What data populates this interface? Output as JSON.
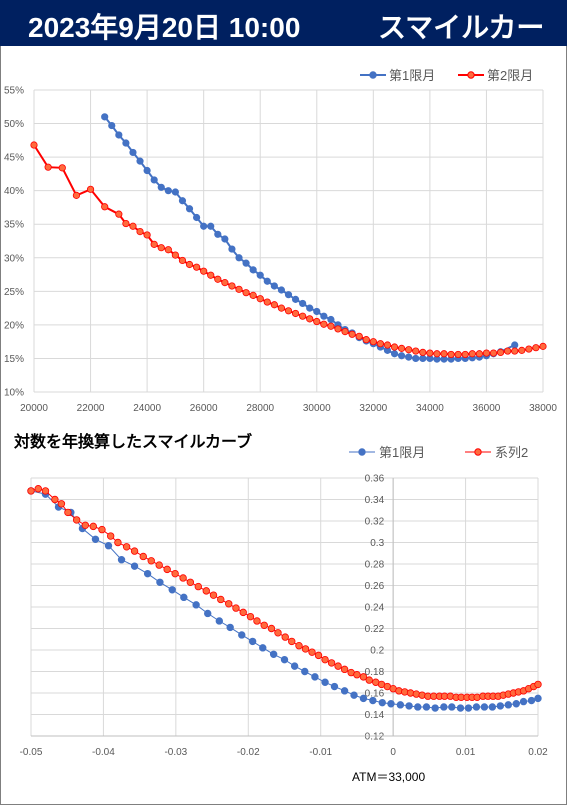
{
  "header": {
    "date": "2023年9月20日 10:00",
    "name": "スマイルカーブ"
  },
  "colors": {
    "header_bg": "#002060",
    "series1": "#4472c4",
    "series2": "#ff0000",
    "series2_fill": "#ff6a3d",
    "grid": "#d9d9d9"
  },
  "chart_data": [
    {
      "type": "line",
      "title": "",
      "xlabel": "",
      "ylabel": "",
      "xlim": [
        20000,
        38000
      ],
      "ylim": [
        0.1,
        0.55
      ],
      "x_ticks": [
        "20000",
        "22000",
        "24000",
        "26000",
        "28000",
        "30000",
        "32000",
        "34000",
        "36000",
        "38000"
      ],
      "y_ticks": [
        "10%",
        "15%",
        "20%",
        "25%",
        "30%",
        "35%",
        "40%",
        "45%",
        "50%",
        "55%"
      ],
      "legend_position": "top-right",
      "series": [
        {
          "name": "第1限月",
          "x": [
            22500,
            22750,
            23000,
            23250,
            23500,
            23750,
            24000,
            24250,
            24500,
            24750,
            25000,
            25250,
            25500,
            25750,
            26000,
            26250,
            26500,
            26750,
            27000,
            27250,
            27500,
            27750,
            28000,
            28250,
            28500,
            28750,
            29000,
            29250,
            29500,
            29750,
            30000,
            30250,
            30500,
            30750,
            31000,
            31250,
            31500,
            31750,
            32000,
            32250,
            32500,
            32750,
            33000,
            33250,
            33500,
            33750,
            34000,
            34250,
            34500,
            34750,
            35000,
            35250,
            35500,
            35750,
            36000,
            36250,
            36500,
            37000
          ],
          "y": [
            0.51,
            0.497,
            0.483,
            0.471,
            0.457,
            0.444,
            0.43,
            0.416,
            0.405,
            0.4,
            0.398,
            0.385,
            0.373,
            0.36,
            0.347,
            0.347,
            0.335,
            0.328,
            0.313,
            0.3,
            0.292,
            0.282,
            0.274,
            0.265,
            0.258,
            0.252,
            0.245,
            0.238,
            0.232,
            0.225,
            0.22,
            0.213,
            0.208,
            0.2,
            0.193,
            0.188,
            0.181,
            0.176,
            0.172,
            0.167,
            0.162,
            0.157,
            0.154,
            0.152,
            0.15,
            0.15,
            0.15,
            0.149,
            0.149,
            0.149,
            0.15,
            0.15,
            0.151,
            0.152,
            0.154,
            0.157,
            0.16,
            0.17
          ]
        },
        {
          "name": "第2限月",
          "x": [
            20000,
            20500,
            21000,
            21500,
            22000,
            22500,
            23000,
            23250,
            23500,
            23750,
            24000,
            24250,
            24500,
            24750,
            25000,
            25250,
            25500,
            25750,
            26000,
            26250,
            26500,
            26750,
            27000,
            27250,
            27500,
            27750,
            28000,
            28250,
            28500,
            28750,
            29000,
            29250,
            29500,
            29750,
            30000,
            30250,
            30500,
            30750,
            31000,
            31250,
            31500,
            31750,
            32000,
            32250,
            32500,
            32750,
            33000,
            33250,
            33500,
            33750,
            34000,
            34250,
            34500,
            34750,
            35000,
            35250,
            35500,
            35750,
            36000,
            36250,
            36500,
            36750,
            37000,
            37250,
            37500,
            37750,
            38000
          ],
          "y": [
            0.468,
            0.435,
            0.434,
            0.393,
            0.402,
            0.376,
            0.365,
            0.351,
            0.347,
            0.339,
            0.334,
            0.32,
            0.315,
            0.312,
            0.304,
            0.296,
            0.29,
            0.286,
            0.28,
            0.274,
            0.268,
            0.263,
            0.258,
            0.253,
            0.248,
            0.244,
            0.239,
            0.234,
            0.23,
            0.225,
            0.221,
            0.217,
            0.213,
            0.209,
            0.205,
            0.201,
            0.198,
            0.194,
            0.19,
            0.186,
            0.183,
            0.178,
            0.175,
            0.172,
            0.17,
            0.167,
            0.165,
            0.163,
            0.161,
            0.159,
            0.158,
            0.157,
            0.157,
            0.156,
            0.156,
            0.156,
            0.157,
            0.157,
            0.158,
            0.158,
            0.159,
            0.161,
            0.161,
            0.162,
            0.164,
            0.166,
            0.168
          ]
        }
      ]
    },
    {
      "type": "line",
      "title": "対数を年換算したスマイルカーブ",
      "xlabel": "",
      "ylabel": "",
      "xlim": [
        -0.05,
        0.02
      ],
      "ylim": [
        0.12,
        0.36
      ],
      "x_ticks": [
        "-0.05",
        "-0.04",
        "-0.03",
        "-0.02",
        "-0.01",
        "0",
        "0.01",
        "0.02"
      ],
      "y_ticks": [
        "0.12",
        "0.14",
        "0.16",
        "0.18",
        "0.2",
        "0.22",
        "0.24",
        "0.26",
        "0.28",
        "0.3",
        "0.32",
        "0.34",
        "0.36"
      ],
      "legend_position": "top-right",
      "annotation": "ATM＝33,000",
      "series": [
        {
          "name": "第1限月",
          "x": [
            -0.05,
            -0.048,
            -0.0462,
            -0.0445,
            -0.0429,
            -0.0411,
            -0.0393,
            -0.0375,
            -0.0357,
            -0.0339,
            -0.0322,
            -0.0305,
            -0.0289,
            -0.0272,
            -0.0256,
            -0.024,
            -0.0225,
            -0.0209,
            -0.0194,
            -0.018,
            -0.0165,
            -0.015,
            -0.0136,
            -0.0122,
            -0.0108,
            -0.0094,
            -0.0081,
            -0.0067,
            -0.0054,
            -0.0041,
            -0.0028,
            -0.0015,
            -0.0003,
            0.001,
            0.0022,
            0.0034,
            0.0046,
            0.0058,
            0.007,
            0.0081,
            0.0093,
            0.0104,
            0.0115,
            0.0126,
            0.0137,
            0.0148,
            0.0159,
            0.017,
            0.018,
            0.0191,
            0.02
          ],
          "y": [
            0.348,
            0.345,
            0.333,
            0.328,
            0.313,
            0.303,
            0.297,
            0.284,
            0.278,
            0.271,
            0.263,
            0.256,
            0.249,
            0.242,
            0.234,
            0.227,
            0.221,
            0.214,
            0.208,
            0.202,
            0.196,
            0.191,
            0.185,
            0.18,
            0.175,
            0.17,
            0.166,
            0.162,
            0.158,
            0.155,
            0.153,
            0.151,
            0.15,
            0.149,
            0.148,
            0.147,
            0.147,
            0.146,
            0.147,
            0.147,
            0.146,
            0.146,
            0.147,
            0.147,
            0.147,
            0.148,
            0.149,
            0.15,
            0.152,
            0.153,
            0.155
          ]
        },
        {
          "name": "系列2",
          "x": [
            -0.05,
            -0.049,
            -0.048,
            -0.0467,
            -0.0458,
            -0.0449,
            -0.0437,
            -0.0425,
            -0.0414,
            -0.0402,
            -0.039,
            -0.038,
            -0.0368,
            -0.0357,
            -0.0345,
            -0.0334,
            -0.0323,
            -0.0312,
            -0.0301,
            -0.029,
            -0.028,
            -0.0269,
            -0.0258,
            -0.0248,
            -0.0238,
            -0.0227,
            -0.0217,
            -0.0207,
            -0.0197,
            -0.0188,
            -0.0178,
            -0.0168,
            -0.0159,
            -0.0149,
            -0.014,
            -0.013,
            -0.0121,
            -0.0112,
            -0.0103,
            -0.0094,
            -0.0085,
            -0.0076,
            -0.0067,
            -0.0058,
            -0.005,
            -0.0041,
            -0.0033,
            -0.0024,
            -0.0016,
            -0.0008,
            0.0,
            0.0008,
            0.0016,
            0.0024,
            0.0032,
            0.004,
            0.0048,
            0.0056,
            0.0064,
            0.0071,
            0.0079,
            0.0087,
            0.0094,
            0.0102,
            0.0109,
            0.0116,
            0.0124,
            0.0131,
            0.0138,
            0.0145,
            0.0152,
            0.0159,
            0.0166,
            0.0173,
            0.018,
            0.0187,
            0.0194,
            0.02
          ],
          "y": [
            0.348,
            0.35,
            0.348,
            0.34,
            0.336,
            0.328,
            0.321,
            0.316,
            0.315,
            0.312,
            0.306,
            0.3,
            0.296,
            0.292,
            0.287,
            0.283,
            0.279,
            0.275,
            0.271,
            0.267,
            0.263,
            0.259,
            0.255,
            0.251,
            0.247,
            0.243,
            0.239,
            0.235,
            0.231,
            0.227,
            0.223,
            0.22,
            0.216,
            0.212,
            0.208,
            0.204,
            0.201,
            0.198,
            0.195,
            0.191,
            0.188,
            0.185,
            0.182,
            0.179,
            0.177,
            0.175,
            0.172,
            0.17,
            0.168,
            0.166,
            0.164,
            0.162,
            0.161,
            0.16,
            0.159,
            0.158,
            0.157,
            0.157,
            0.157,
            0.157,
            0.157,
            0.156,
            0.156,
            0.156,
            0.156,
            0.156,
            0.157,
            0.157,
            0.157,
            0.157,
            0.158,
            0.159,
            0.16,
            0.161,
            0.162,
            0.164,
            0.166,
            0.168
          ]
        }
      ]
    }
  ]
}
